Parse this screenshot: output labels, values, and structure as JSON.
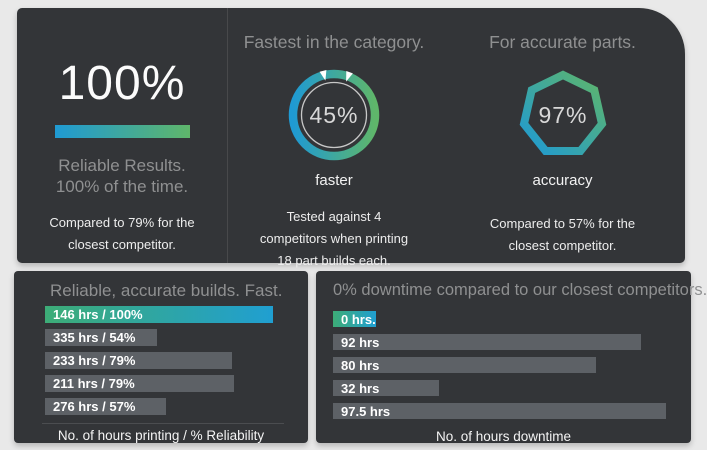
{
  "colors": {
    "panel": "#333538",
    "background": "#e9e9e9",
    "blue": "#1f9ad3",
    "green": "#5fb66a",
    "bargreen": "#3dac77",
    "barblue": "#209fd1",
    "graybar": "#5d6166",
    "muted": "#8f9091"
  },
  "top_panel": {
    "reliability": {
      "big_value": "100%",
      "sub_line1": "Reliable Results.",
      "sub_line2": "100% of the time.",
      "note_line1": "Compared to 79% for the",
      "note_line2": "closest competitor."
    },
    "speed": {
      "header": "Fastest in the category.",
      "gauge_value": "45%",
      "gauge_label": "faster",
      "note_line1": "Tested against 4",
      "note_line2": "competitors when printing",
      "note_line3": "18 part builds each."
    },
    "accuracy": {
      "header": "For accurate parts.",
      "gauge_value": "97%",
      "gauge_label": "accuracy",
      "note_line1": "Compared to 57% for the",
      "note_line2": "closest competitor."
    }
  },
  "chart_data": [
    {
      "type": "bar",
      "orientation": "horizontal",
      "title": "Reliable, accurate builds. Fast.",
      "xlabel": "No. of hours printing / % Reliability",
      "bars": [
        {
          "label": "146 hrs / 100%",
          "hours": 146,
          "reliability_pct": 100,
          "width_pct": 100,
          "highlight": true
        },
        {
          "label": "335 hrs / 54%",
          "hours": 335,
          "reliability_pct": 54,
          "width_pct": 49,
          "highlight": false
        },
        {
          "label": "233 hrs / 79%",
          "hours": 233,
          "reliability_pct": 79,
          "width_pct": 82,
          "highlight": false
        },
        {
          "label": "211 hrs / 79%",
          "hours": 211,
          "reliability_pct": 79,
          "width_pct": 83,
          "highlight": false
        },
        {
          "label": "276 hrs / 57%",
          "hours": 276,
          "reliability_pct": 57,
          "width_pct": 53,
          "highlight": false
        }
      ]
    },
    {
      "type": "bar",
      "orientation": "horizontal",
      "title": "0% downtime compared to our closest competitors.",
      "xlabel": "No. of hours downtime",
      "bars": [
        {
          "label": "0 hrs.",
          "hours": 0,
          "width_pct": 12.5,
          "highlight": true
        },
        {
          "label": "92 hrs",
          "hours": 92,
          "width_pct": 90,
          "highlight": false
        },
        {
          "label": "80 hrs",
          "hours": 80,
          "width_pct": 77,
          "highlight": false
        },
        {
          "label": "32 hrs",
          "hours": 32,
          "width_pct": 31,
          "highlight": false
        },
        {
          "label": "97.5 hrs",
          "hours": 97.5,
          "width_pct": 97.5,
          "highlight": false
        }
      ]
    },
    {
      "type": "gauge",
      "shape": "ring",
      "value": 45,
      "value_label": "45%",
      "label": "faster"
    },
    {
      "type": "gauge",
      "shape": "heptagon",
      "value": 97,
      "value_label": "97%",
      "label": "accuracy"
    }
  ]
}
